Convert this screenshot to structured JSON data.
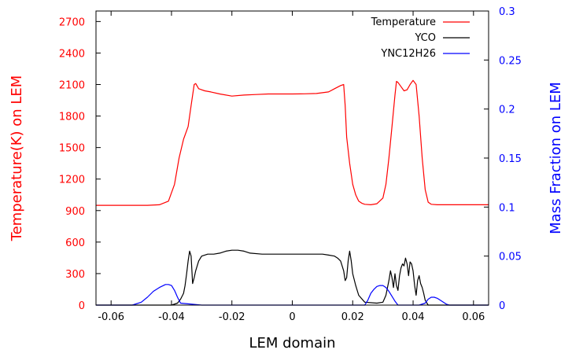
{
  "colors": {
    "left_axis": "#ff0000",
    "right_axis": "#0000ff",
    "temperature": "#ff0000",
    "yco": "#000000",
    "ync12h26": "#0000ff",
    "frame": "#000000"
  },
  "chart_data": {
    "type": "line",
    "xlabel": "LEM domain",
    "ylabel_left": "Temperature(K) on LEM",
    "ylabel_right": "Mass Fraction on LEM",
    "xlim": [
      -0.065,
      0.065
    ],
    "ylim_left": [
      0,
      2800
    ],
    "ylim_right": [
      0,
      0.3
    ],
    "x_ticks": [
      "-0.06",
      "-0.04",
      "-0.02",
      "0",
      "0.02",
      "0.04",
      "0.06"
    ],
    "x_tick_values": [
      -0.06,
      -0.04,
      -0.02,
      0,
      0.02,
      0.04,
      0.06
    ],
    "y_left_ticks": [
      "0",
      "300",
      "600",
      "900",
      "1200",
      "1500",
      "1800",
      "2100",
      "2400",
      "2700"
    ],
    "y_left_tick_values": [
      0,
      300,
      600,
      900,
      1200,
      1500,
      1800,
      2100,
      2400,
      2700
    ],
    "y_right_ticks": [
      "0",
      "0.05",
      "0.1",
      "0.15",
      "0.2",
      "0.25",
      "0.3"
    ],
    "y_right_tick_values": [
      0,
      0.05,
      0.1,
      0.15,
      0.2,
      0.25,
      0.3
    ],
    "grid": false,
    "legend_position": "top-right",
    "series": [
      {
        "name": "Temperature",
        "axis": "left",
        "x": [
          -0.065,
          -0.055,
          -0.048,
          -0.044,
          -0.041,
          -0.039,
          -0.0375,
          -0.036,
          -0.0345,
          -0.0335,
          -0.0325,
          -0.032,
          -0.031,
          -0.029,
          -0.027,
          -0.024,
          -0.02,
          -0.016,
          -0.012,
          -0.008,
          -0.004,
          0.0,
          0.004,
          0.008,
          0.012,
          0.014,
          0.016,
          0.017,
          0.0175,
          0.018,
          0.019,
          0.02,
          0.021,
          0.022,
          0.023,
          0.024,
          0.026,
          0.028,
          0.03,
          0.031,
          0.032,
          0.033,
          0.034,
          0.0345,
          0.035,
          0.036,
          0.037,
          0.038,
          0.039,
          0.04,
          0.041,
          0.042,
          0.043,
          0.044,
          0.045,
          0.046,
          0.048,
          0.055,
          0.065
        ],
        "y": [
          950,
          950,
          950,
          955,
          990,
          1150,
          1400,
          1580,
          1700,
          1900,
          2100,
          2110,
          2060,
          2040,
          2030,
          2010,
          1990,
          2000,
          2005,
          2010,
          2010,
          2010,
          2012,
          2015,
          2030,
          2060,
          2090,
          2100,
          1900,
          1600,
          1350,
          1150,
          1050,
          990,
          970,
          960,
          955,
          965,
          1020,
          1150,
          1400,
          1700,
          2000,
          2130,
          2120,
          2080,
          2040,
          2050,
          2100,
          2140,
          2100,
          1800,
          1400,
          1100,
          980,
          960,
          955,
          955,
          955
        ]
      },
      {
        "name": "YCO",
        "axis": "right",
        "x": [
          -0.065,
          -0.04,
          -0.038,
          -0.037,
          -0.036,
          -0.0355,
          -0.035,
          -0.0345,
          -0.034,
          -0.0335,
          -0.033,
          -0.0325,
          -0.032,
          -0.031,
          -0.03,
          -0.028,
          -0.026,
          -0.024,
          -0.022,
          -0.02,
          -0.018,
          -0.016,
          -0.014,
          -0.01,
          -0.005,
          0.0,
          0.005,
          0.01,
          0.012,
          0.014,
          0.015,
          0.016,
          0.017,
          0.0175,
          0.018,
          0.0185,
          0.019,
          0.0195,
          0.02,
          0.021,
          0.022,
          0.024,
          0.028,
          0.03,
          0.031,
          0.032,
          0.0325,
          0.033,
          0.0335,
          0.034,
          0.0345,
          0.035,
          0.0355,
          0.036,
          0.0365,
          0.037,
          0.0375,
          0.038,
          0.0385,
          0.039,
          0.0395,
          0.04,
          0.0405,
          0.041,
          0.0415,
          0.042,
          0.0425,
          0.043,
          0.0435,
          0.044,
          0.045,
          0.065
        ],
        "y": [
          0,
          0,
          0.002,
          0.006,
          0.012,
          0.02,
          0.032,
          0.045,
          0.055,
          0.05,
          0.022,
          0.028,
          0.035,
          0.045,
          0.05,
          0.052,
          0.052,
          0.053,
          0.055,
          0.056,
          0.056,
          0.055,
          0.053,
          0.052,
          0.052,
          0.052,
          0.052,
          0.052,
          0.051,
          0.05,
          0.048,
          0.045,
          0.035,
          0.025,
          0.028,
          0.045,
          0.055,
          0.045,
          0.032,
          0.02,
          0.01,
          0.003,
          0.002,
          0.003,
          0.01,
          0.025,
          0.035,
          0.028,
          0.018,
          0.032,
          0.02,
          0.015,
          0.03,
          0.038,
          0.042,
          0.04,
          0.048,
          0.042,
          0.03,
          0.044,
          0.042,
          0.035,
          0.02,
          0.01,
          0.025,
          0.03,
          0.022,
          0.018,
          0.012,
          0.005,
          0.0,
          0.0
        ]
      },
      {
        "name": "YNC12H26",
        "axis": "right",
        "x": [
          -0.065,
          -0.053,
          -0.05,
          -0.048,
          -0.046,
          -0.044,
          -0.042,
          -0.041,
          -0.04,
          -0.039,
          -0.038,
          -0.037,
          -0.03,
          0.024,
          0.025,
          0.026,
          0.027,
          0.028,
          0.029,
          0.03,
          0.031,
          0.032,
          0.033,
          0.034,
          0.035,
          0.042,
          0.044,
          0.045,
          0.046,
          0.047,
          0.048,
          0.049,
          0.05,
          0.051,
          0.052,
          0.065
        ],
        "y": [
          0,
          0,
          0.003,
          0.008,
          0.014,
          0.018,
          0.021,
          0.021,
          0.02,
          0.015,
          0.008,
          0.002,
          0,
          0,
          0.005,
          0.012,
          0.016,
          0.019,
          0.02,
          0.02,
          0.018,
          0.014,
          0.009,
          0.004,
          0,
          0,
          0.002,
          0.006,
          0.008,
          0.008,
          0.007,
          0.005,
          0.003,
          0.001,
          0,
          0
        ]
      }
    ]
  }
}
